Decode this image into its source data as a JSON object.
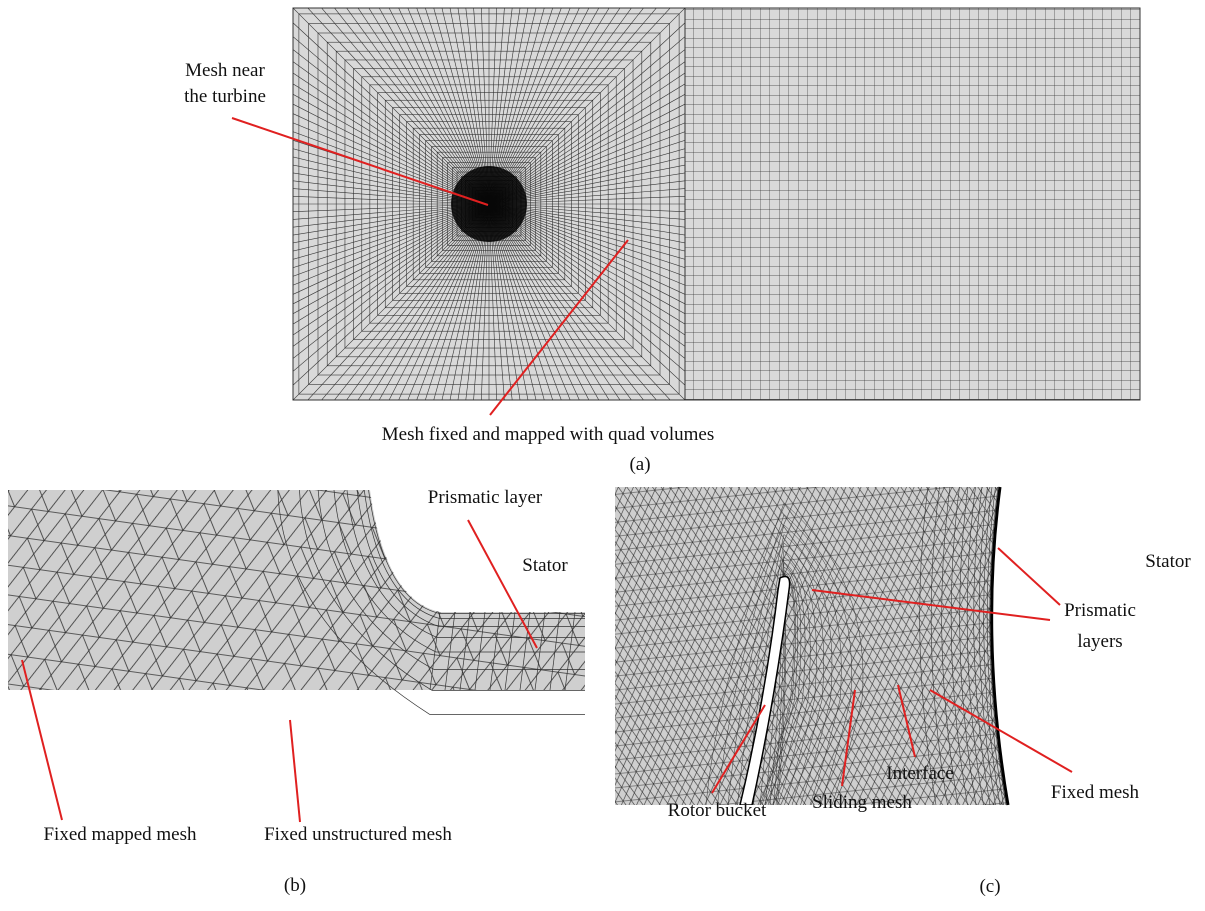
{
  "panels": [
    {
      "label": "(a)",
      "annotations": [
        {
          "lines": [
            "Mesh near",
            "the turbine"
          ]
        },
        {
          "lines": [
            "Mesh fixed and mapped with quad volumes"
          ]
        }
      ]
    },
    {
      "label": "(b)",
      "annotations": [
        {
          "lines": [
            "Prismatic layer"
          ]
        },
        {
          "lines": [
            "Stator"
          ]
        },
        {
          "lines": [
            "Fixed mapped mesh"
          ]
        },
        {
          "lines": [
            "Fixed unstructured mesh"
          ]
        }
      ]
    },
    {
      "label": "(c)",
      "annotations": [
        {
          "lines": [
            "Stator"
          ]
        },
        {
          "lines": [
            "Prismatic",
            "layers"
          ]
        },
        {
          "lines": [
            "Fixed mesh"
          ]
        },
        {
          "lines": [
            "Interface"
          ]
        },
        {
          "lines": [
            "Sliding mesh"
          ]
        },
        {
          "lines": [
            "Rotor bucket"
          ]
        }
      ]
    }
  ]
}
